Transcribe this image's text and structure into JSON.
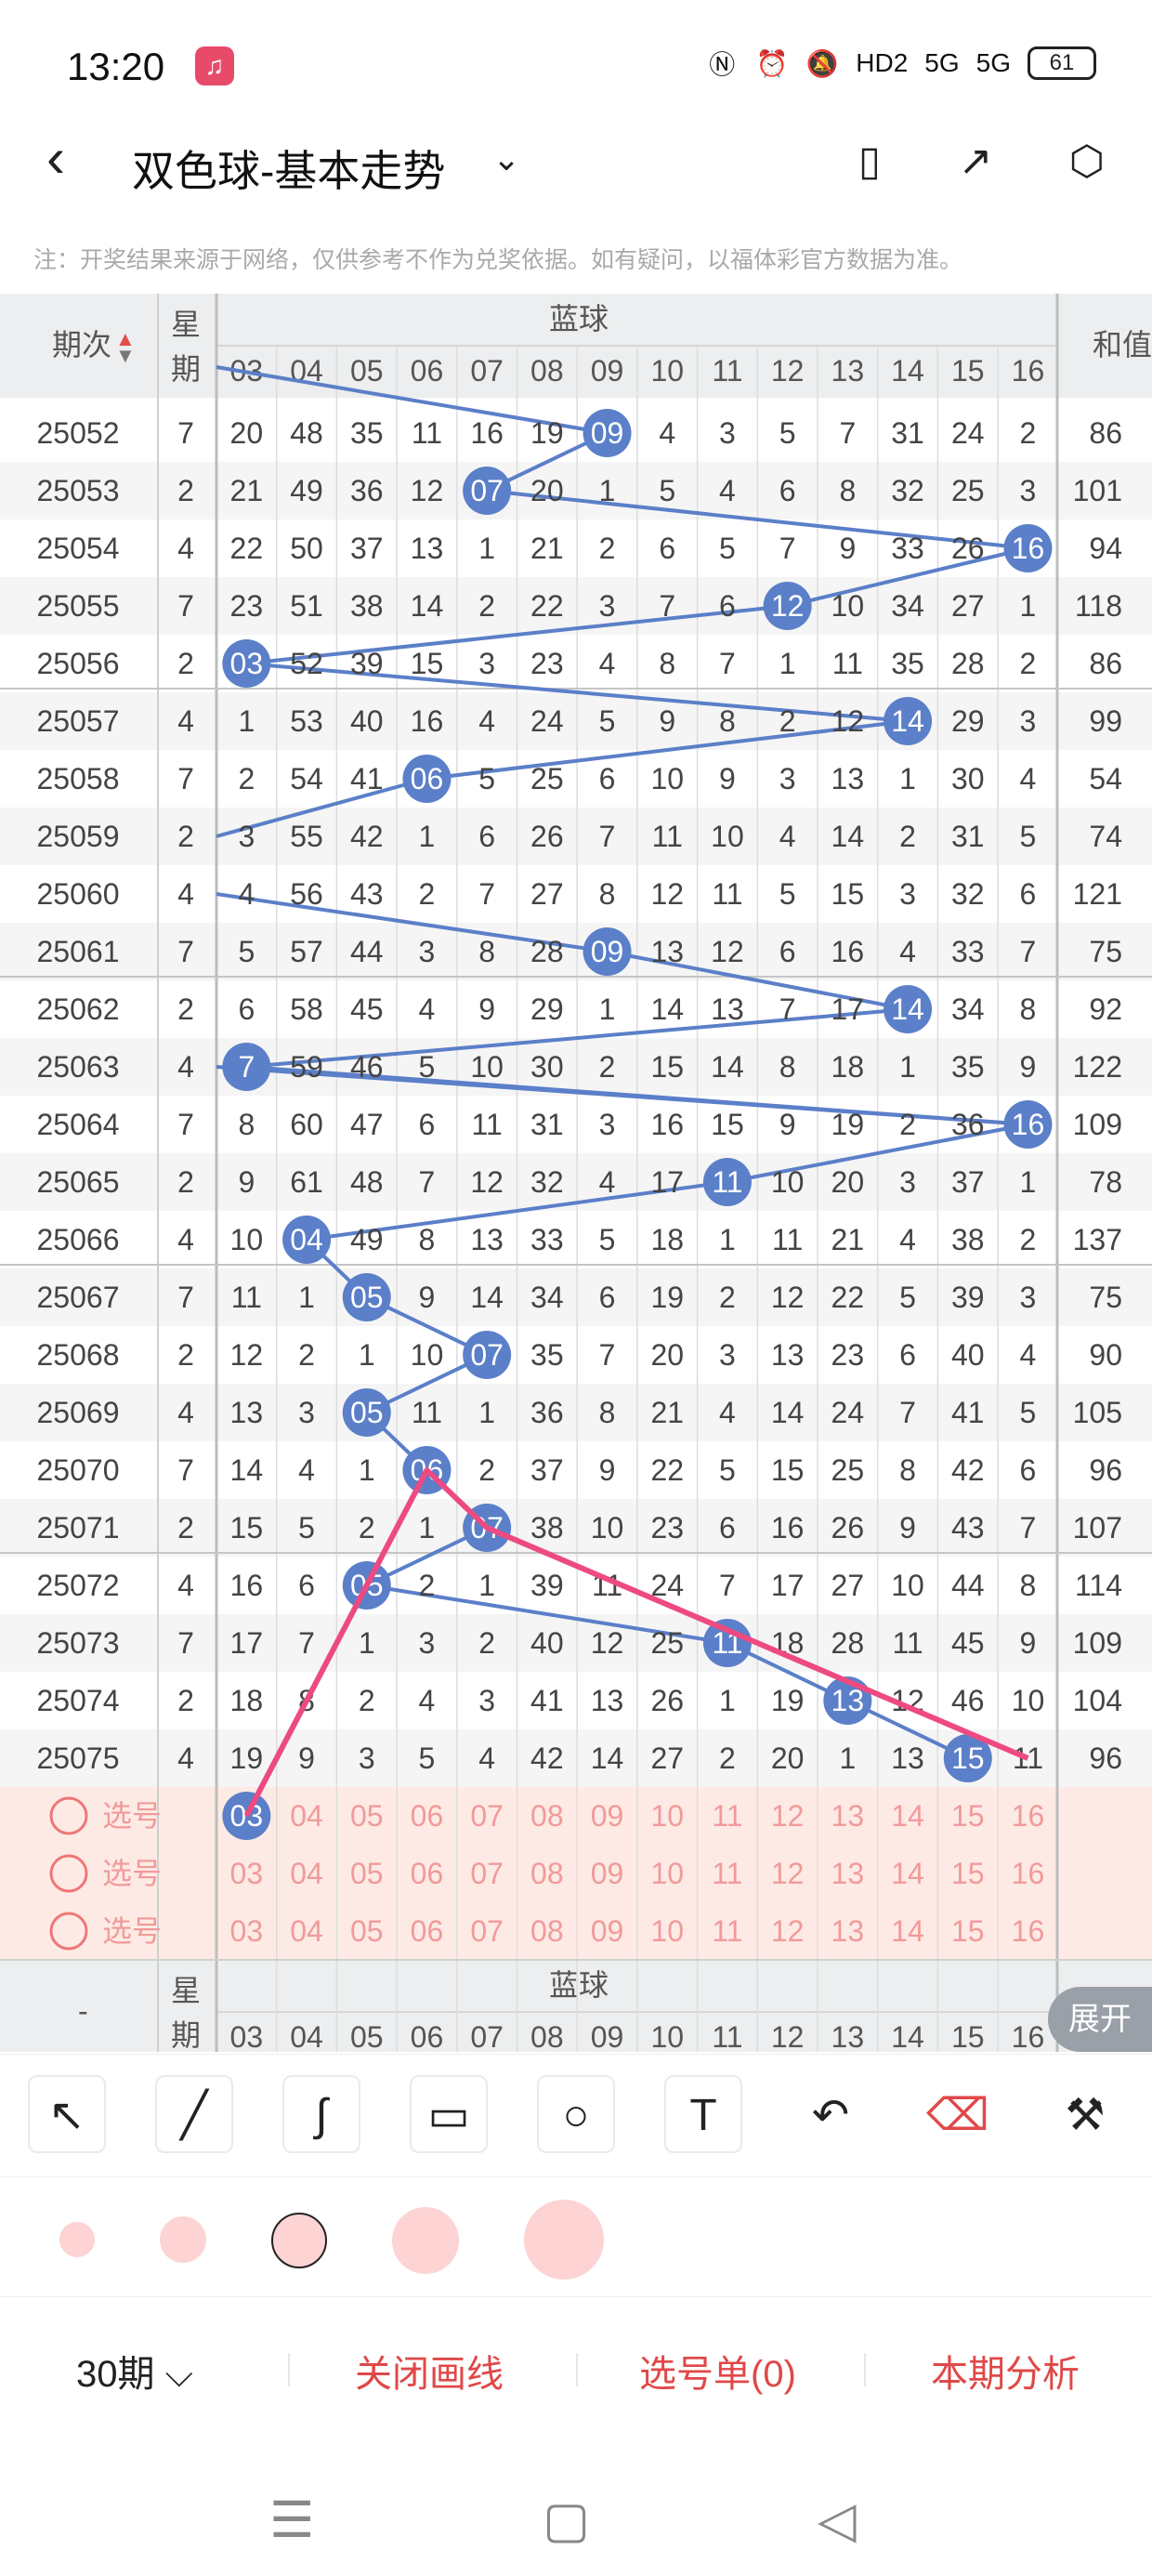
{
  "status": {
    "time": "13:20",
    "app_icon": "music-icon",
    "icons": [
      "nfc-icon",
      "alarm-icon",
      "mute-icon",
      "HD2",
      "5G",
      "5G"
    ],
    "battery": "61"
  },
  "header": {
    "title": "双色球-基本走势",
    "back_icon": "chevron-left-icon",
    "dropdown_icon": "chevron-down-icon",
    "action_icons": [
      "phone-layout-icon",
      "share-icon",
      "settings-icon"
    ]
  },
  "notice": "注：开奖结果来源于网络，仅供参考不作为兑奖依据。如有疑问，以福体彩官方数据为准。",
  "table": {
    "col_period": "期次",
    "col_week": [
      "星",
      "期"
    ],
    "col_blue": "蓝球",
    "col_sum": "和值",
    "footer_period": "-",
    "blue_numbers": [
      "03",
      "04",
      "05",
      "06",
      "07",
      "08",
      "09",
      "10",
      "11",
      "12",
      "13",
      "14",
      "15",
      "16"
    ],
    "rows": [
      {
        "period": "25052",
        "week": "7",
        "cells": [
          "20",
          "48",
          "35",
          "11",
          "16",
          "19",
          "09",
          "4",
          "3",
          "5",
          "7",
          "31",
          "24",
          "2"
        ],
        "sum": "86"
      },
      {
        "period": "25053",
        "week": "2",
        "cells": [
          "21",
          "49",
          "36",
          "12",
          "07",
          "20",
          "1",
          "5",
          "4",
          "6",
          "8",
          "32",
          "25",
          "3"
        ],
        "sum": "101"
      },
      {
        "period": "25054",
        "week": "4",
        "cells": [
          "22",
          "50",
          "37",
          "13",
          "1",
          "21",
          "2",
          "6",
          "5",
          "7",
          "9",
          "33",
          "26",
          "16"
        ],
        "sum": "94"
      },
      {
        "period": "25055",
        "week": "7",
        "cells": [
          "23",
          "51",
          "38",
          "14",
          "2",
          "22",
          "3",
          "7",
          "6",
          "12",
          "10",
          "34",
          "27",
          "1"
        ],
        "sum": "118"
      },
      {
        "period": "25056",
        "week": "2",
        "cells": [
          "03",
          "52",
          "39",
          "15",
          "3",
          "23",
          "4",
          "8",
          "7",
          "1",
          "11",
          "35",
          "28",
          "2"
        ],
        "sum": "86"
      },
      {
        "period": "25057",
        "week": "4",
        "cells": [
          "1",
          "53",
          "40",
          "16",
          "4",
          "24",
          "5",
          "9",
          "8",
          "2",
          "12",
          "14",
          "29",
          "3"
        ],
        "sum": "99"
      },
      {
        "period": "25058",
        "week": "7",
        "cells": [
          "2",
          "54",
          "41",
          "06",
          "5",
          "25",
          "6",
          "10",
          "9",
          "3",
          "13",
          "1",
          "30",
          "4"
        ],
        "sum": "54"
      },
      {
        "period": "25059",
        "week": "2",
        "cells": [
          "3",
          "55",
          "42",
          "1",
          "6",
          "26",
          "7",
          "11",
          "10",
          "4",
          "14",
          "2",
          "31",
          "5"
        ],
        "sum": "74"
      },
      {
        "period": "25060",
        "week": "4",
        "cells": [
          "4",
          "56",
          "43",
          "2",
          "7",
          "27",
          "8",
          "12",
          "11",
          "5",
          "15",
          "3",
          "32",
          "6"
        ],
        "sum": "121"
      },
      {
        "period": "25061",
        "week": "7",
        "cells": [
          "5",
          "57",
          "44",
          "3",
          "8",
          "28",
          "09",
          "13",
          "12",
          "6",
          "16",
          "4",
          "33",
          "7"
        ],
        "sum": "75"
      },
      {
        "period": "25062",
        "week": "2",
        "cells": [
          "6",
          "58",
          "45",
          "4",
          "9",
          "29",
          "1",
          "14",
          "13",
          "7",
          "17",
          "14",
          "34",
          "8"
        ],
        "sum": "92"
      },
      {
        "period": "25063",
        "week": "4",
        "cells": [
          "7",
          "59",
          "46",
          "5",
          "10",
          "30",
          "2",
          "15",
          "14",
          "8",
          "18",
          "1",
          "35",
          "9"
        ],
        "sum": "122"
      },
      {
        "period": "25064",
        "week": "7",
        "cells": [
          "8",
          "60",
          "47",
          "6",
          "11",
          "31",
          "3",
          "16",
          "15",
          "9",
          "19",
          "2",
          "36",
          "16"
        ],
        "sum": "109"
      },
      {
        "period": "25065",
        "week": "2",
        "cells": [
          "9",
          "61",
          "48",
          "7",
          "12",
          "32",
          "4",
          "17",
          "11",
          "10",
          "20",
          "3",
          "37",
          "1"
        ],
        "sum": "78"
      },
      {
        "period": "25066",
        "week": "4",
        "cells": [
          "10",
          "04",
          "49",
          "8",
          "13",
          "33",
          "5",
          "18",
          "1",
          "11",
          "21",
          "4",
          "38",
          "2"
        ],
        "sum": "137"
      },
      {
        "period": "25067",
        "week": "7",
        "cells": [
          "11",
          "1",
          "05",
          "9",
          "14",
          "34",
          "6",
          "19",
          "2",
          "12",
          "22",
          "5",
          "39",
          "3"
        ],
        "sum": "75"
      },
      {
        "period": "25068",
        "week": "2",
        "cells": [
          "12",
          "2",
          "1",
          "10",
          "07",
          "35",
          "7",
          "20",
          "3",
          "13",
          "23",
          "6",
          "40",
          "4"
        ],
        "sum": "90"
      },
      {
        "period": "25069",
        "week": "4",
        "cells": [
          "13",
          "3",
          "05",
          "11",
          "1",
          "36",
          "8",
          "21",
          "4",
          "14",
          "24",
          "7",
          "41",
          "5"
        ],
        "sum": "105"
      },
      {
        "period": "25070",
        "week": "7",
        "cells": [
          "14",
          "4",
          "1",
          "06",
          "2",
          "37",
          "9",
          "22",
          "5",
          "15",
          "25",
          "8",
          "42",
          "6"
        ],
        "sum": "96"
      },
      {
        "period": "25071",
        "week": "2",
        "cells": [
          "15",
          "5",
          "2",
          "1",
          "07",
          "38",
          "10",
          "23",
          "6",
          "16",
          "26",
          "9",
          "43",
          "7"
        ],
        "sum": "107"
      },
      {
        "period": "25072",
        "week": "4",
        "cells": [
          "16",
          "6",
          "05",
          "2",
          "1",
          "39",
          "11",
          "24",
          "7",
          "17",
          "27",
          "10",
          "44",
          "8"
        ],
        "sum": "114"
      },
      {
        "period": "25073",
        "week": "7",
        "cells": [
          "17",
          "7",
          "1",
          "3",
          "2",
          "40",
          "12",
          "25",
          "11",
          "18",
          "28",
          "11",
          "45",
          "9"
        ],
        "sum": "109"
      },
      {
        "period": "25074",
        "week": "2",
        "cells": [
          "18",
          "8",
          "2",
          "4",
          "3",
          "41",
          "13",
          "26",
          "1",
          "19",
          "13",
          "12",
          "46",
          "10"
        ],
        "sum": "104"
      },
      {
        "period": "25075",
        "week": "4",
        "cells": [
          "19",
          "9",
          "3",
          "5",
          "4",
          "42",
          "14",
          "27",
          "2",
          "20",
          "1",
          "13",
          "15",
          "11"
        ],
        "sum": "96"
      }
    ],
    "blue_hits": [
      6,
      4,
      13,
      9,
      0,
      11,
      3,
      null,
      null,
      6,
      11,
      0,
      13,
      8,
      1,
      2,
      4,
      2,
      3,
      4,
      2,
      8,
      10,
      12
    ],
    "pick_label": "选号",
    "pick_rows": 3,
    "drawn_line_color": "#ee4a82",
    "trend_line_color": "#5b7fc8",
    "hit_ball_color": "#5b7fc8",
    "pick_text_color": "#f19a9a",
    "pick_bg_color": "#fdeae5"
  },
  "expand_label": "展开",
  "toolbar": {
    "tools": [
      "arrow-icon",
      "line-icon",
      "freehand-icon",
      "rectangle-icon",
      "circle-icon",
      "text-icon",
      "undo-icon",
      "eraser-icon",
      "clear-icon"
    ],
    "selected_size": 2
  },
  "bottom": {
    "period": "30期",
    "close_draw": "关闭画线",
    "pick_list": "选号单(0)",
    "analysis": "本期分析"
  }
}
